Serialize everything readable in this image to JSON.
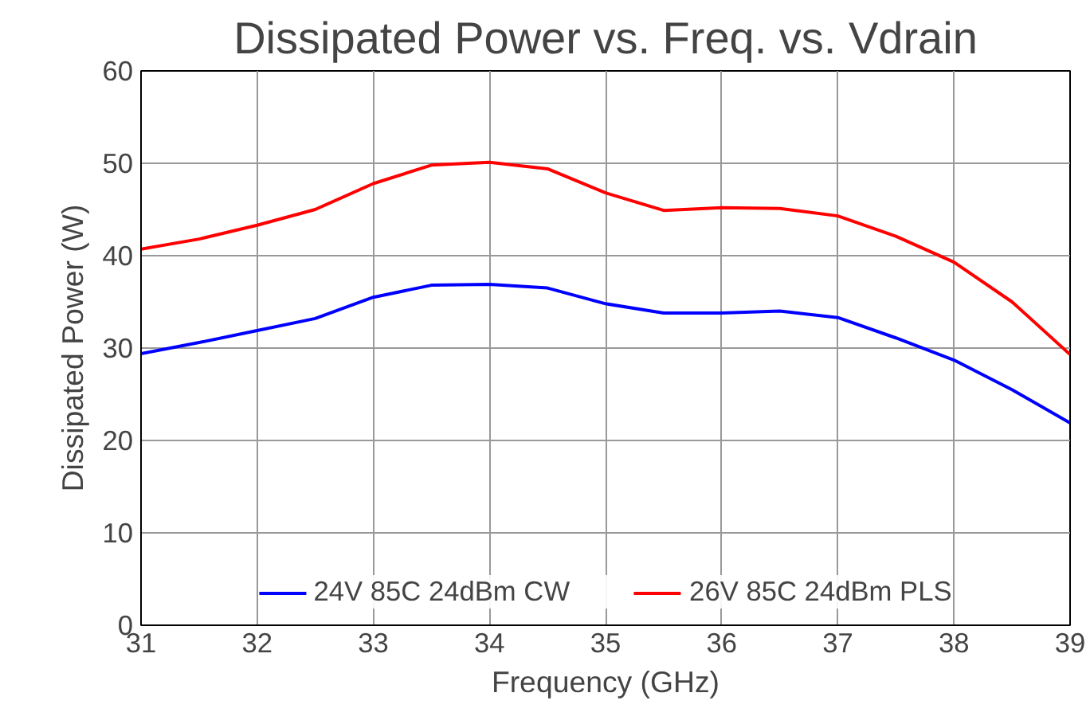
{
  "chart_data": {
    "type": "line",
    "title": "Dissipated Power vs. Freq. vs. Vdrain",
    "xlabel": "Frequency (GHz)",
    "ylabel": "Dissipated Power (W)",
    "x": [
      31,
      31.5,
      32,
      32.5,
      33,
      33.5,
      34,
      34.5,
      35,
      35.5,
      36,
      36.5,
      37,
      37.5,
      38,
      38.5,
      39
    ],
    "series": [
      {
        "name": "24V 85C 24dBm CW",
        "color": "#0000ff",
        "values": [
          29.4,
          30.6,
          31.9,
          33.2,
          35.5,
          36.8,
          36.9,
          36.5,
          34.8,
          33.8,
          33.8,
          34.0,
          33.3,
          31.1,
          28.7,
          25.5,
          21.9
        ]
      },
      {
        "name": "26V 85C 24dBm PLS",
        "color": "#ff0000",
        "values": [
          40.7,
          41.8,
          43.3,
          45.0,
          47.8,
          49.8,
          50.1,
          49.4,
          46.8,
          44.9,
          45.2,
          45.1,
          44.3,
          42.1,
          39.3,
          35.0,
          29.3
        ]
      }
    ],
    "xlim": [
      31,
      39
    ],
    "xticks": [
      31,
      32,
      33,
      34,
      35,
      36,
      37,
      38,
      39
    ],
    "ylim": [
      0,
      60
    ],
    "yticks": [
      0,
      10,
      20,
      30,
      40,
      50,
      60
    ],
    "grid": true,
    "legend": "bottom",
    "marker": "none",
    "line_style": "solid"
  }
}
